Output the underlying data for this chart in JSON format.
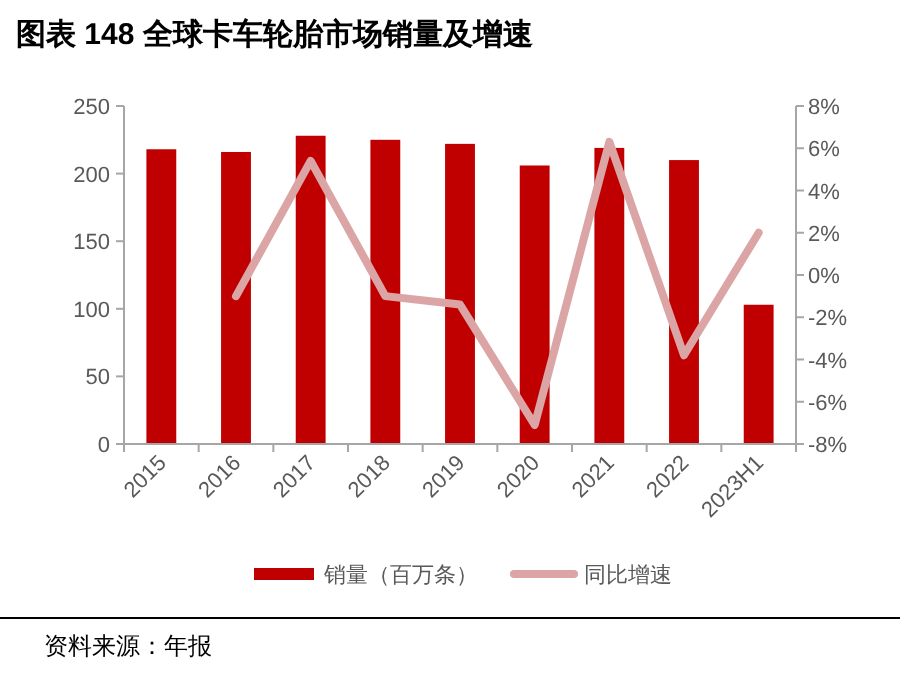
{
  "chart_data": {
    "type": "bar",
    "title": "图表 148 全球卡车轮胎市场销量及增速",
    "categories": [
      "2015",
      "2016",
      "2017",
      "2018",
      "2019",
      "2020",
      "2021",
      "2022",
      "2023H1"
    ],
    "series": [
      {
        "name": "销量（百万条）",
        "color": "#c00000",
        "values": [
          218,
          216,
          228,
          225,
          222,
          206,
          219,
          210,
          103
        ]
      },
      {
        "name": "同比增速",
        "type": "line",
        "axis": "y2",
        "color": "#dba5a6",
        "values": [
          null,
          -1.0,
          5.4,
          -1.0,
          -1.4,
          -7.1,
          6.3,
          -3.8,
          2.0
        ]
      }
    ],
    "ylim": [
      0,
      250
    ],
    "yticks": [
      0,
      50,
      100,
      150,
      200,
      250
    ],
    "y2lim": [
      -8,
      8
    ],
    "y2ticks": [
      {
        "value": 8,
        "label": "8%"
      },
      {
        "value": 6,
        "label": "6%"
      },
      {
        "value": 4,
        "label": "4%"
      },
      {
        "value": 2,
        "label": "2%"
      },
      {
        "value": 0,
        "label": "0%"
      },
      {
        "value": -2,
        "label": "-2%"
      },
      {
        "value": -4,
        "label": "-4%"
      },
      {
        "value": -6,
        "label": "-6%"
      },
      {
        "value": -8,
        "label": "-8%"
      }
    ],
    "grid": false,
    "legend": "bottom",
    "annotations": [
      "资料来源：年报"
    ]
  }
}
